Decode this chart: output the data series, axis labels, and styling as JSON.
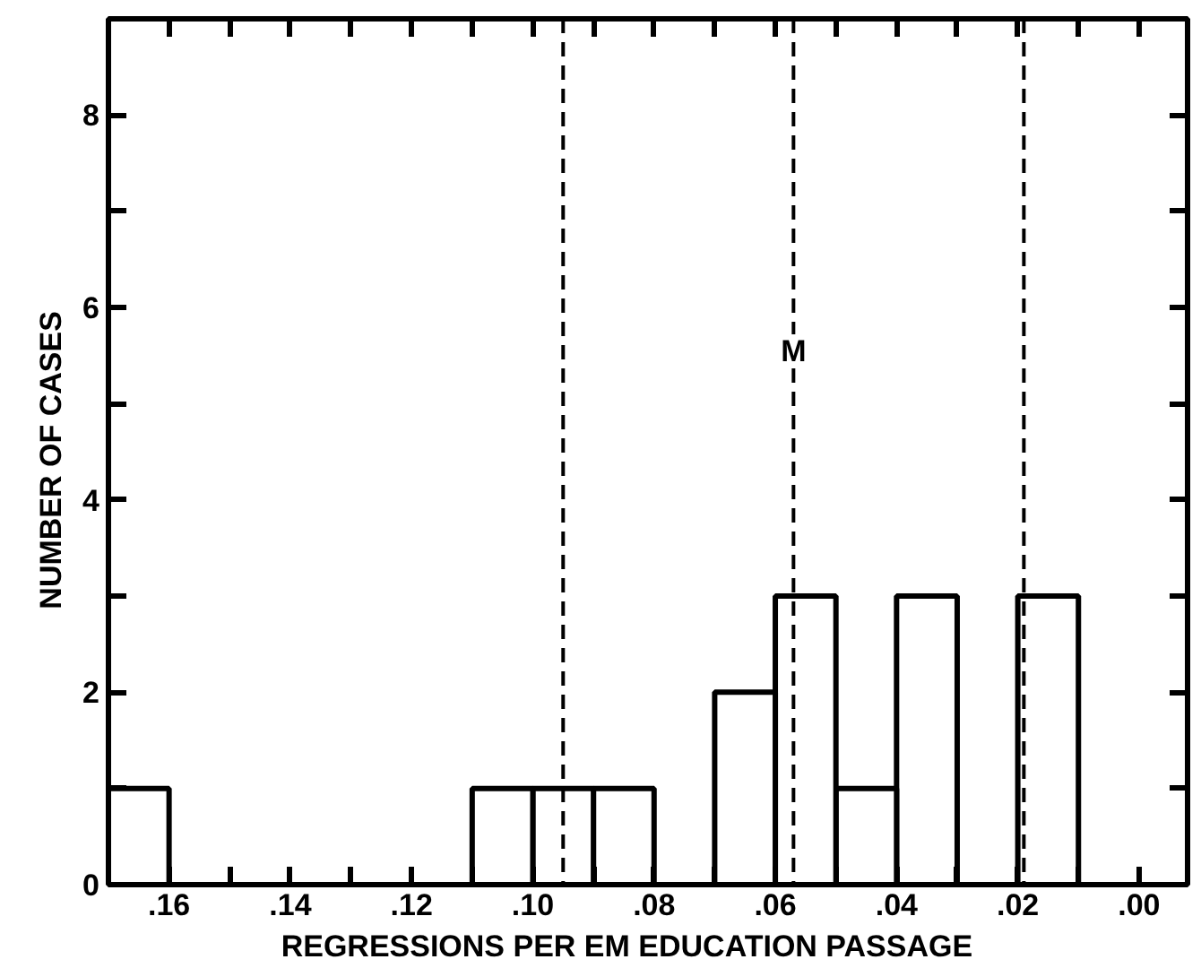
{
  "chart_data": {
    "type": "histogram",
    "xlabel": "REGRESSIONS  PER  EM   EDUCATION  PASSAGE",
    "ylabel": "NUMBER  OF  CASES",
    "bins": [
      0.0,
      0.01,
      0.02,
      0.03,
      0.04,
      0.05,
      0.06,
      0.07,
      0.08,
      0.09,
      0.1,
      0.11,
      0.12,
      0.13,
      0.14,
      0.15,
      0.16,
      0.17
    ],
    "values": [
      0,
      3,
      0,
      3,
      1,
      3,
      2,
      0,
      1,
      1,
      1,
      0,
      0,
      0,
      0,
      0,
      1
    ],
    "color": "#000000",
    "xlim": [
      0.17,
      -0.008
    ],
    "xticks": [
      {
        "value": 0.16,
        "label": ".16"
      },
      {
        "value": 0.15,
        "label": null
      },
      {
        "value": 0.14,
        "label": ".14"
      },
      {
        "value": 0.13,
        "label": null
      },
      {
        "value": 0.12,
        "label": ".12"
      },
      {
        "value": 0.11,
        "label": null
      },
      {
        "value": 0.1,
        "label": ".10"
      },
      {
        "value": 0.09,
        "label": null
      },
      {
        "value": 0.08,
        "label": ".08"
      },
      {
        "value": 0.07,
        "label": null
      },
      {
        "value": 0.06,
        "label": ".06"
      },
      {
        "value": 0.05,
        "label": null
      },
      {
        "value": 0.04,
        "label": ".04"
      },
      {
        "value": 0.03,
        "label": null
      },
      {
        "value": 0.02,
        "label": ".02"
      },
      {
        "value": 0.01,
        "label": null
      },
      {
        "value": 0.0,
        "label": ".00"
      }
    ],
    "ylim": [
      0,
      9
    ],
    "yticks": [
      0,
      {
        "value": 1,
        "label": null
      },
      2,
      {
        "value": 3,
        "label": null
      },
      4,
      {
        "value": 5,
        "label": null
      },
      6,
      {
        "value": 7,
        "label": null
      },
      8
    ],
    "ref_lines": [
      {
        "axis": "x",
        "value": 0.095,
        "label": null,
        "line_style": "dashed"
      },
      {
        "axis": "x",
        "value": 0.057,
        "label": "M",
        "line_style": "dashed"
      },
      {
        "axis": "x",
        "value": 0.019,
        "label": null,
        "line_style": "dashed"
      }
    ],
    "grid": false
  }
}
